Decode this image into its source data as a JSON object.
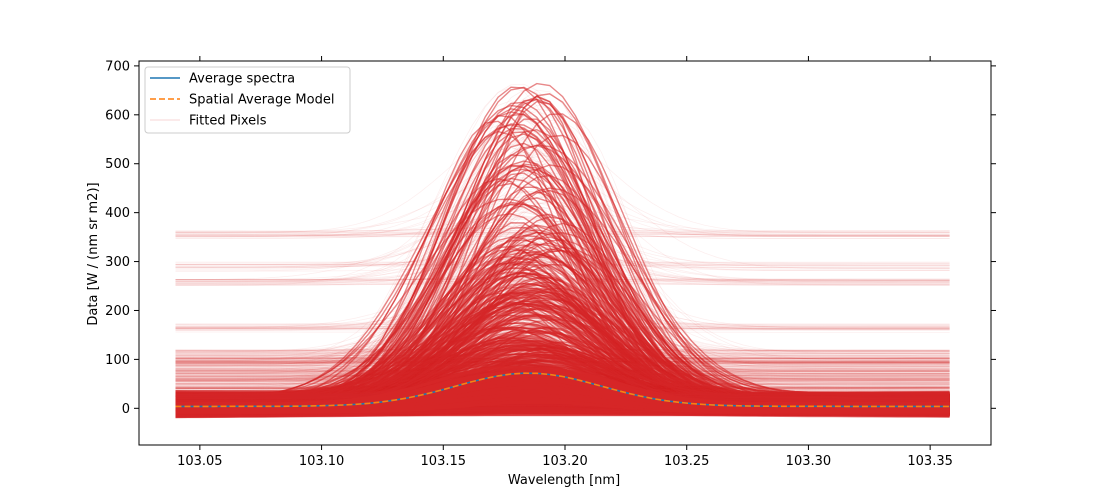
{
  "chart_data": {
    "type": "line",
    "title": "",
    "xlabel": "Wavelength [nm]",
    "ylabel": "Data [W / (nm sr m2)]",
    "xlim": [
      103.025,
      103.375
    ],
    "ylim": [
      -75,
      710
    ],
    "x_ticks": [
      103.05,
      103.1,
      103.15,
      103.2,
      103.25,
      103.3,
      103.35
    ],
    "x_tick_labels": [
      "103.05",
      "103.10",
      "103.15",
      "103.20",
      "103.25",
      "103.30",
      "103.35"
    ],
    "y_ticks": [
      0,
      100,
      200,
      300,
      400,
      500,
      600,
      700
    ],
    "y_tick_labels": [
      "0",
      "100",
      "200",
      "300",
      "400",
      "500",
      "600",
      "700"
    ],
    "x_range": [
      103.04,
      103.358
    ],
    "grid": false,
    "legend_position": "top-left",
    "legend": [
      {
        "label": "Average spectra",
        "style": "solid",
        "color": "#1f77b4"
      },
      {
        "label": "Spatial Average Model",
        "style": "dashed",
        "color": "#ff7f0e"
      },
      {
        "label": "Fitted Pixels",
        "style": "solid",
        "color": "#d62728"
      }
    ],
    "series": [
      {
        "name": "Average spectra",
        "color": "#1f77b4",
        "model": "gaussian",
        "baseline": 4,
        "amplitude": 68,
        "center": 103.185,
        "sigma": 0.03
      },
      {
        "name": "Spatial Average Model",
        "color": "#ff7f0e",
        "model": "gaussian",
        "baseline": 4,
        "amplitude": 68,
        "center": 103.185,
        "sigma": 0.03
      },
      {
        "name": "Fitted Pixels",
        "color": "#d62728",
        "model": "gaussian-family",
        "count": 1800,
        "center": 103.185,
        "center_spread": 0.012,
        "sigma": 0.03,
        "sigma_spread": 0.006,
        "amplitude_max": 665,
        "baseline_levels": [
          0,
          20,
          40,
          60,
          97,
          165,
          260,
          290,
          355
        ]
      }
    ]
  }
}
